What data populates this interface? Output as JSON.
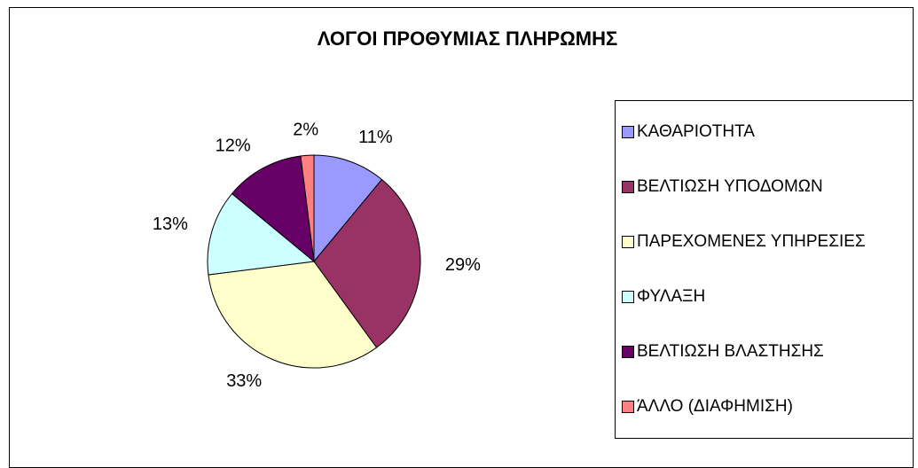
{
  "chart_data": {
    "type": "pie",
    "title": "ΛΟΓΟΙ ΠΡΟΘΥΜΙΑΣ ΠΛΗΡΩΜΗΣ",
    "categories": [
      "ΚΑΘΑΡΙΟΤΗΤΑ",
      "ΒΕΛΤΙΩΣΗ ΥΠΟΔΟΜΩΝ",
      "ΠΑΡΕΧΟΜΕΝΕΣ ΥΠΗΡΕΣΙΕΣ",
      "ΦΥΛΑΞΗ",
      "ΒΕΛΤΙΩΣΗ ΒΛΑΣΤΗΣΗΣ",
      "ΆΛΛΟ (ΔΙΑΦΗΜΙΣΗ)"
    ],
    "values": [
      11,
      29,
      33,
      13,
      12,
      2
    ],
    "value_labels": [
      "11%",
      "29%",
      "33%",
      "13%",
      "12%",
      "2%"
    ],
    "colors": [
      "#9999ff",
      "#993366",
      "#ffffcc",
      "#ccffff",
      "#660066",
      "#ff8080"
    ],
    "legend": "right"
  }
}
